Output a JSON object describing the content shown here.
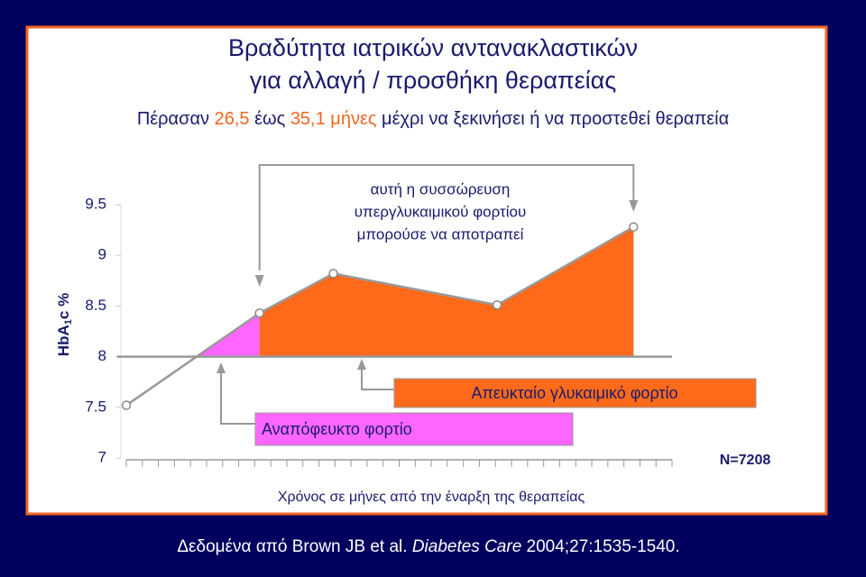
{
  "chart_data": {
    "type": "line",
    "title": [
      "Βραδύτητα ιατρικών αντανακλαστικών",
      "για αλλαγή / προσθήκη θεραπείας"
    ],
    "subtitle": [
      {
        "text": "Πέρασαν ",
        "color": "#1a1a6e"
      },
      {
        "text": "26,5",
        "color": "#f26522"
      },
      {
        "text": " έως ",
        "color": "#1a1a6e"
      },
      {
        "text": "35,1 μήνες",
        "color": "#f26522"
      },
      {
        "text": " μέχρι να ξεκινήσει ή να προστεθεί θεραπεία",
        "color": "#1a1a6e"
      }
    ],
    "ylabel": [
      "HbA",
      "1",
      "c %"
    ],
    "xlabel": "Χρόνος σε μήνες από την έναρξη της θεραπείας",
    "x": [
      0,
      8.3,
      12.9,
      23.1,
      31.6
    ],
    "values": [
      7.52,
      8.43,
      8.82,
      8.51,
      9.28
    ],
    "xlim": [
      0,
      34
    ],
    "xticks": [
      0,
      1,
      2,
      3,
      4,
      5,
      6,
      7,
      8,
      9,
      10,
      11,
      12,
      13,
      14,
      15,
      16,
      17,
      18,
      19,
      20,
      21,
      22,
      23,
      24,
      25,
      26,
      27,
      28,
      29,
      30,
      31,
      32,
      33,
      34
    ],
    "ylim": [
      7,
      9.5
    ],
    "yticks": [
      7,
      7.5,
      8,
      8.5,
      9,
      9.5
    ],
    "threshold": 8,
    "unavoidable_color": "#ff66ff",
    "avoidable_color": "#ff6a1a",
    "annotation_preventable": [
      "αυτή η συσσώρευση",
      "υπεργλυκαιμικού φορτίου",
      "μπορούσε να αποτραπεί"
    ],
    "annotation_avoidable": "Απευκταίο γλυκαιμικό φορτίο",
    "annotation_unavoidable": "Αναπόφευκτο φορτίο",
    "n_label": "N=7208",
    "citation": [
      {
        "text": "Δεδομένα από Brown JB et al. ",
        "italic": false
      },
      {
        "text": "Diabetes Care",
        "italic": true
      },
      {
        "text": " 2004;27:1535-1540.",
        "italic": false
      }
    ]
  }
}
